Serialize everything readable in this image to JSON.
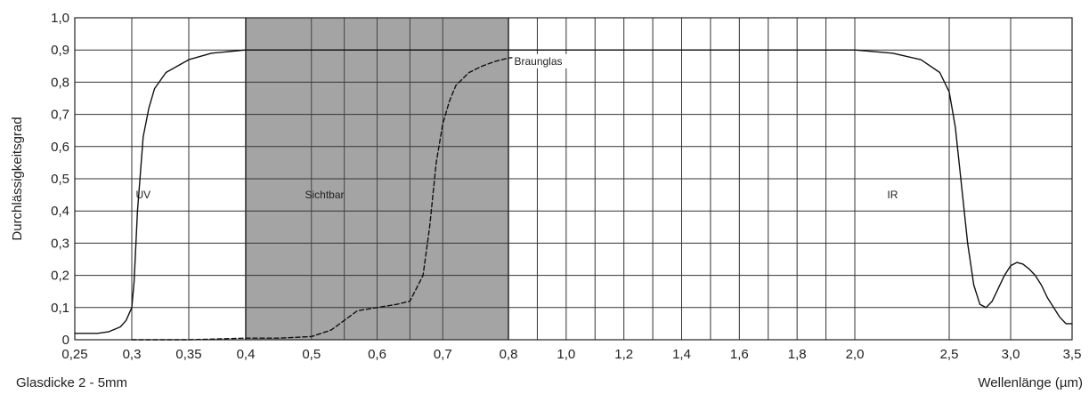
{
  "chart_data": {
    "type": "line",
    "xlabel": "Wellenlänge (µm)",
    "ylabel": "Durchlässigkeitsgrad",
    "note": "Glasdicke 2 - 5mm",
    "xlim": [
      0.25,
      3.5
    ],
    "ylim": [
      0,
      1.0
    ],
    "grid": true,
    "x_ticks": [
      0.25,
      0.3,
      0.35,
      0.4,
      0.5,
      0.6,
      0.7,
      0.8,
      1.0,
      1.2,
      1.4,
      1.6,
      1.8,
      2.0,
      2.5,
      3.0,
      3.5
    ],
    "x_tick_labels": [
      "0,25",
      "0,3",
      "0,35",
      "0,4",
      "0,5",
      "0,6",
      "0,7",
      "0,8",
      "1,0",
      "1,2",
      "1,4",
      "1,6",
      "1,8",
      "2,0",
      "2,5",
      "3,0",
      "3,5"
    ],
    "x_gridlines": [
      0.25,
      0.3,
      0.35,
      0.4,
      0.5,
      0.55,
      0.6,
      0.65,
      0.7,
      0.8,
      0.9,
      1.0,
      1.1,
      1.2,
      1.3,
      1.4,
      1.5,
      1.6,
      1.7,
      1.8,
      1.9,
      2.0,
      2.5,
      3.0,
      3.5
    ],
    "y_ticks": [
      0,
      0.1,
      0.2,
      0.3,
      0.4,
      0.5,
      0.6,
      0.7,
      0.8,
      0.9,
      1.0
    ],
    "y_tick_labels": [
      "0",
      "0,1",
      "0,2",
      "0,3",
      "0,4",
      "0,5",
      "0,6",
      "0,7",
      "0,8",
      "0,9",
      "1,0"
    ],
    "regions": [
      {
        "label": "UV",
        "x_start": 0.25,
        "x_end": 0.4,
        "label_x": 0.31,
        "label_y": 0.45,
        "shaded": false
      },
      {
        "label": "Sichtbar",
        "x_start": 0.4,
        "x_end": 0.8,
        "label_x": 0.52,
        "label_y": 0.45,
        "shaded": true,
        "color": "#a4a4a4"
      },
      {
        "label": "IR",
        "x_start": 0.8,
        "x_end": 3.5,
        "label_x": 2.2,
        "label_y": 0.45,
        "shaded": false
      }
    ],
    "series": [
      {
        "style": "solid",
        "x": [
          0.25,
          0.27,
          0.28,
          0.29,
          0.295,
          0.3,
          0.302,
          0.305,
          0.31,
          0.315,
          0.32,
          0.33,
          0.35,
          0.37,
          0.4,
          0.5,
          0.8,
          1.0,
          1.5,
          1.8,
          2.0,
          2.2,
          2.35,
          2.45,
          2.5,
          2.55,
          2.6,
          2.65,
          2.7,
          2.75,
          2.8,
          2.85,
          2.9,
          2.95,
          3.0,
          3.05,
          3.1,
          3.15,
          3.2,
          3.25,
          3.3,
          3.35,
          3.4,
          3.45,
          3.5
        ],
        "y": [
          0.02,
          0.02,
          0.025,
          0.04,
          0.06,
          0.1,
          0.18,
          0.4,
          0.63,
          0.72,
          0.78,
          0.83,
          0.87,
          0.89,
          0.9,
          0.9,
          0.9,
          0.9,
          0.9,
          0.9,
          0.9,
          0.89,
          0.87,
          0.83,
          0.77,
          0.66,
          0.48,
          0.3,
          0.17,
          0.11,
          0.1,
          0.12,
          0.16,
          0.2,
          0.23,
          0.24,
          0.235,
          0.22,
          0.2,
          0.17,
          0.13,
          0.1,
          0.07,
          0.05,
          0.05
        ],
        "gap": {
          "from": 0.4,
          "to": 1.8
        }
      },
      {
        "name": "Braunglas",
        "style": "dashed",
        "x": [
          0.3,
          0.35,
          0.4,
          0.45,
          0.5,
          0.53,
          0.55,
          0.57,
          0.6,
          0.63,
          0.65,
          0.67,
          0.68,
          0.69,
          0.7,
          0.71,
          0.72,
          0.74,
          0.76,
          0.78,
          0.8,
          0.85,
          0.9
        ],
        "y": [
          0.0,
          0.0,
          0.005,
          0.005,
          0.01,
          0.03,
          0.06,
          0.09,
          0.1,
          0.11,
          0.12,
          0.2,
          0.35,
          0.55,
          0.67,
          0.74,
          0.79,
          0.83,
          0.85,
          0.865,
          0.875,
          0.88,
          0.88
        ],
        "label_x": 0.82,
        "label_y": 0.865
      }
    ]
  }
}
